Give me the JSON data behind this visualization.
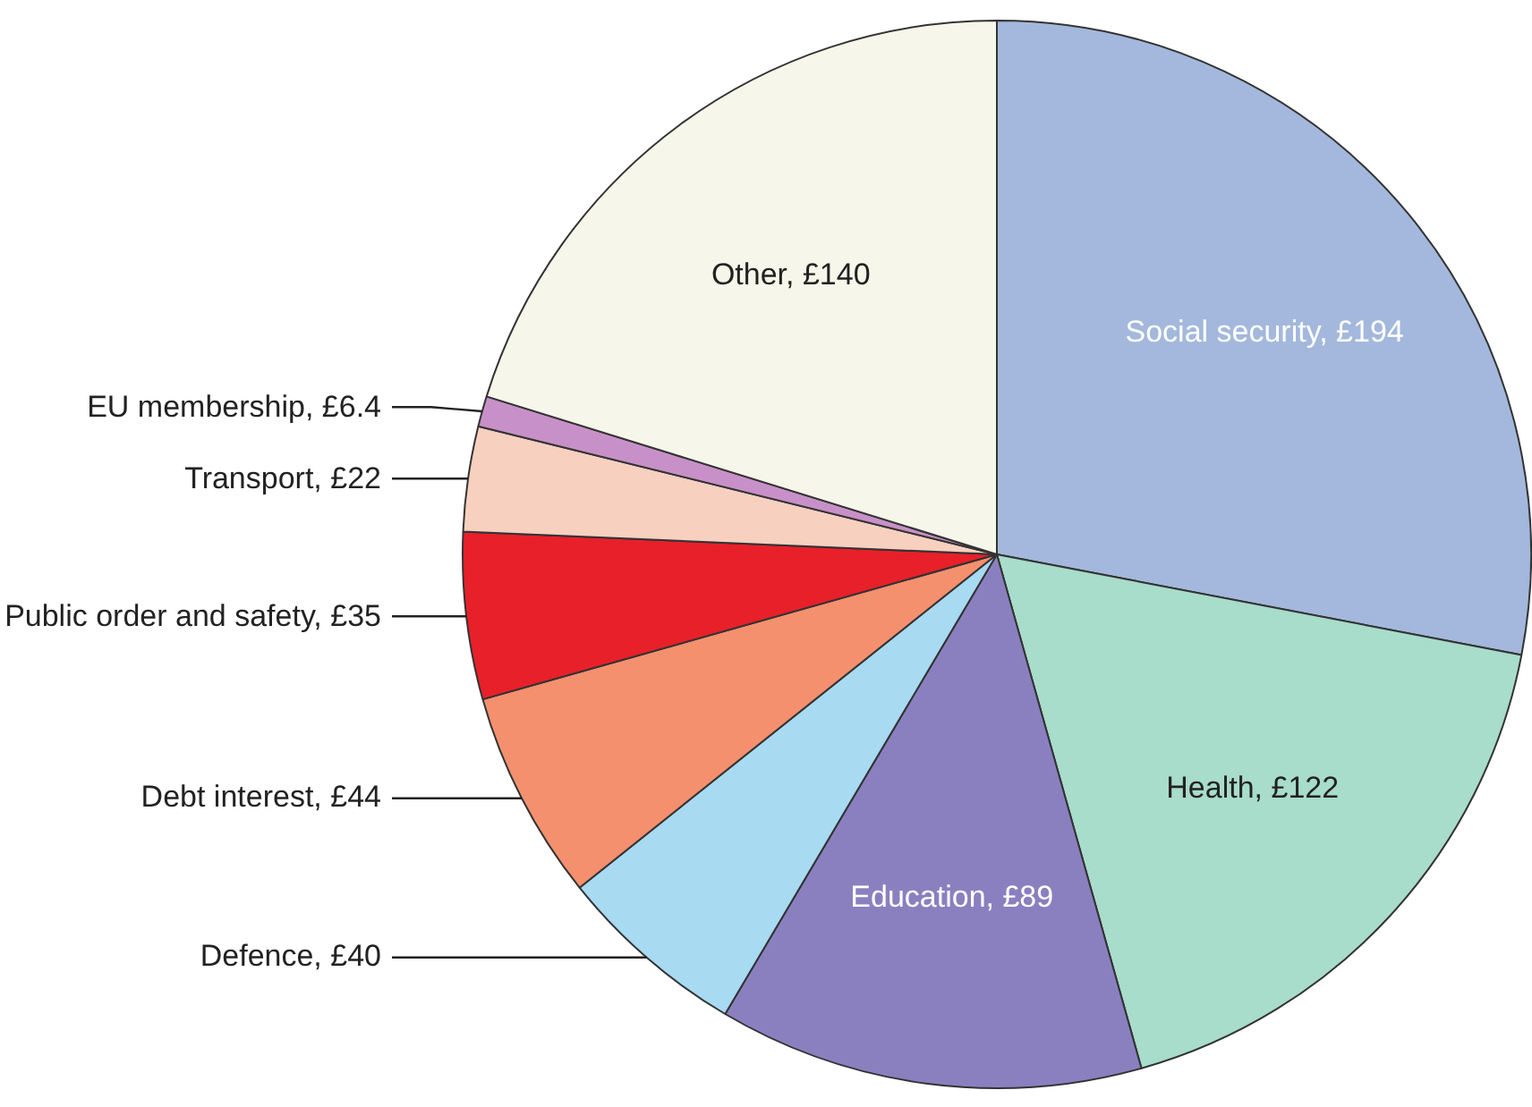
{
  "chart_data": {
    "type": "pie",
    "categories": [
      "Social security",
      "Health",
      "Education",
      "Defence",
      "Debt interest",
      "Public order and safety",
      "Transport",
      "EU membership",
      "Other"
    ],
    "values": [
      194,
      122,
      89,
      40,
      44,
      35,
      22,
      6.4,
      140
    ],
    "value_labels": [
      "£194",
      "£122",
      "£89",
      "£40",
      "£44",
      "£35",
      "£22",
      "£6.4",
      "£140"
    ],
    "colors": [
      "#a3b8dc",
      "#a8dccb",
      "#8a80c0",
      "#a8daf2",
      "#f4906e",
      "#e8202a",
      "#f8d0c0",
      "#c890c8",
      "#f6f6ea"
    ],
    "legend": false
  }
}
